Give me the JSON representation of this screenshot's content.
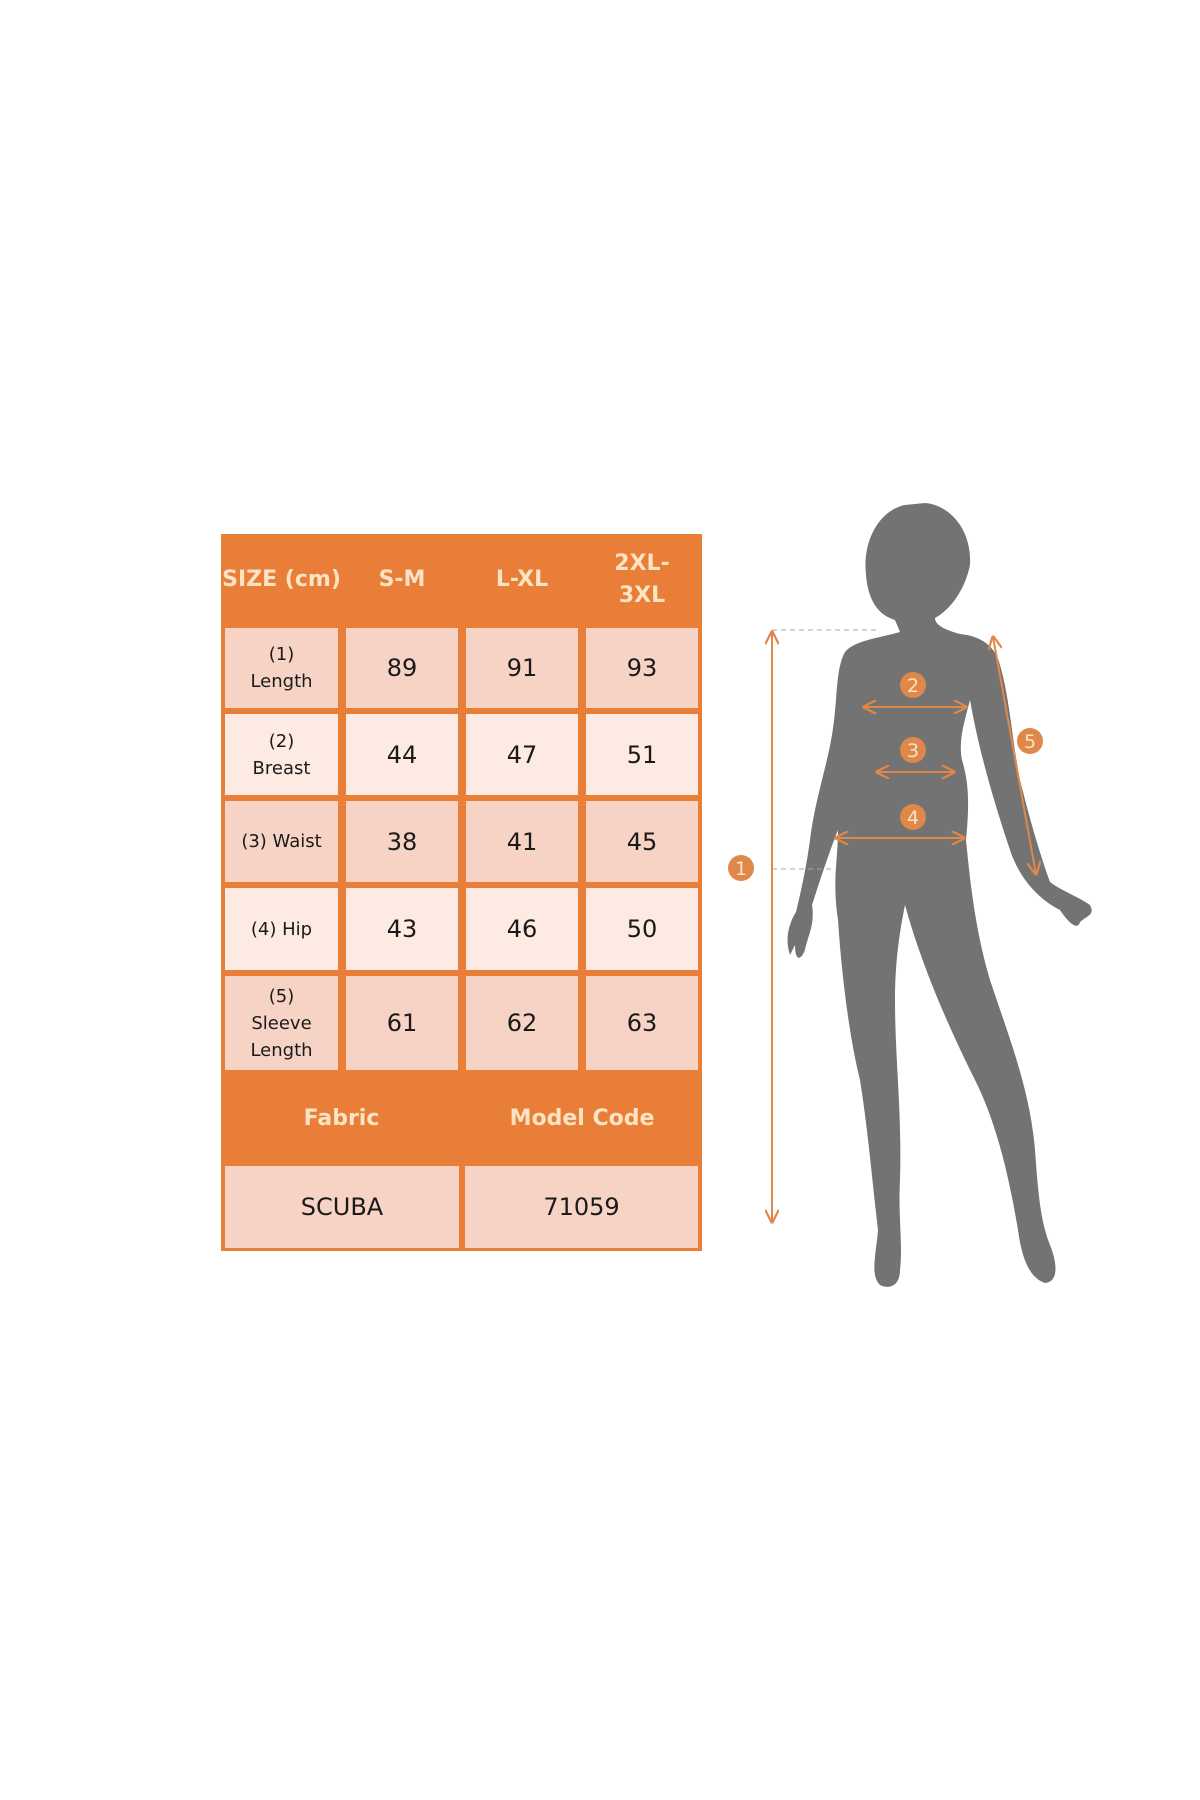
{
  "table": {
    "header": [
      "SIZE (cm)",
      "S-M",
      "L-XL",
      "2XL-3XL"
    ],
    "rows": [
      {
        "label": "(1) Length",
        "values": [
          "89",
          "91",
          "93"
        ]
      },
      {
        "label": "(2) Breast",
        "values": [
          "44",
          "47",
          "51"
        ]
      },
      {
        "label": "(3) Waist",
        "values": [
          "38",
          "41",
          "45"
        ]
      },
      {
        "label": "(4) Hip",
        "values": [
          "43",
          "46",
          "50"
        ]
      },
      {
        "label": "(5) Sleeve Length",
        "values": [
          "61",
          "62",
          "63"
        ]
      }
    ],
    "footer_header": [
      "Fabric",
      "Model Code"
    ],
    "footer_values": [
      "SCUBA",
      "71059"
    ]
  },
  "figure": {
    "markers": [
      "1",
      "2",
      "3",
      "4",
      "5"
    ]
  },
  "colors": {
    "accent": "#E97E38",
    "header_text": "#FBE3C4",
    "cell_dark": "#F6D3C5",
    "cell_light": "#FCEAE3",
    "silhouette": "#737373"
  }
}
